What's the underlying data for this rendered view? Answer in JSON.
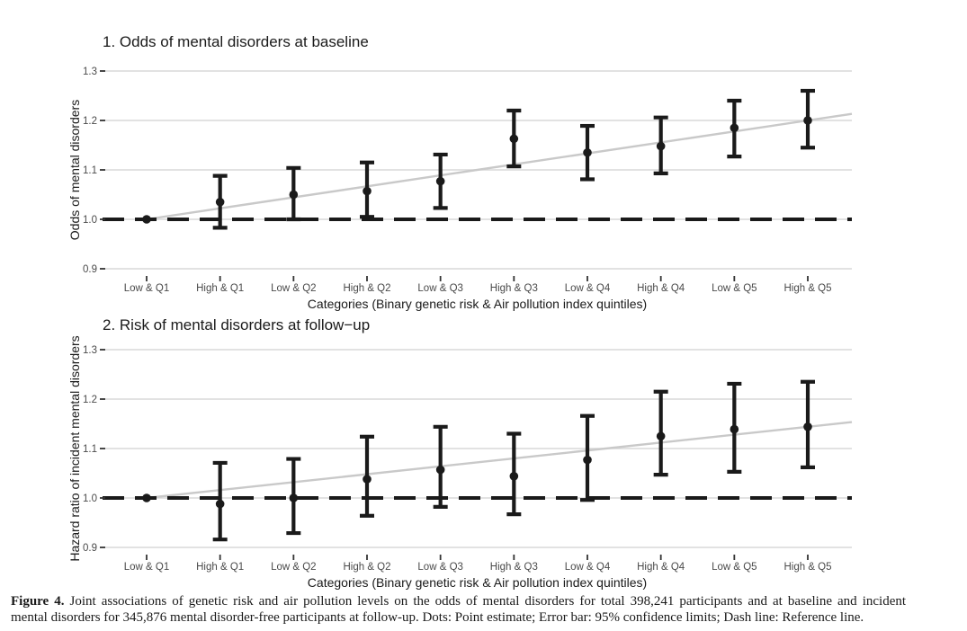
{
  "colors": {
    "ink": "#1a1a1a",
    "axis_text": "#4a4a4a",
    "tick_mark": "#333333",
    "gridline": "#d9d9d9",
    "trend_line": "#c9c9c9",
    "reference_line": "#1a1a1a",
    "background": "#ffffff"
  },
  "caption": {
    "label": "Figure 4.",
    "line1_rest": "Joint associations of genetic risk and air pollution levels on the odds of mental disorders for total 398,241 participants and at baseline and incident",
    "line2": "mental disorders for 345,876 mental disorder-free participants at follow-up. Dots: Point estimate; Error bar: 95% confidence limits; Dash line: Reference line."
  },
  "chart_data": [
    {
      "type": "scatter",
      "subtype": "point-estimates-with-95ci-error-bars",
      "title": "1. Odds of mental disorders at baseline",
      "xlabel": "Categories (Binary genetic risk & Air pollution index quintiles)",
      "ylabel": "Odds of mental disorders",
      "categories": [
        "Low & Q1",
        "High & Q1",
        "Low & Q2",
        "High & Q2",
        "Low & Q3",
        "High & Q3",
        "Low & Q4",
        "High & Q4",
        "Low & Q5",
        "High & Q5"
      ],
      "yticks": [
        0.9,
        1.0,
        1.1,
        1.2,
        1.3
      ],
      "ylim": [
        0.88,
        1.33
      ],
      "grid": "horizontal-only",
      "legend": "none",
      "reference_line": 1.0,
      "trend_line": "light gray straight fit from first to last point",
      "series": [
        {
          "name": "Point estimate (odds ratio)",
          "estimates": [
            1.0,
            1.035,
            1.05,
            1.057,
            1.077,
            1.163,
            1.135,
            1.148,
            1.185,
            1.2
          ],
          "ci_low": [
            1.0,
            0.983,
            1.0,
            1.005,
            1.023,
            1.107,
            1.081,
            1.093,
            1.127,
            1.145
          ],
          "ci_high": [
            1.0,
            1.088,
            1.104,
            1.115,
            1.131,
            1.22,
            1.189,
            1.206,
            1.24,
            1.26
          ]
        }
      ]
    },
    {
      "type": "scatter",
      "subtype": "point-estimates-with-95ci-error-bars",
      "title": "2. Risk of mental disorders at follow−up",
      "xlabel": "Categories (Binary genetic risk & Air pollution index quintiles)",
      "ylabel": "Hazard ratio of incident mental disorders",
      "categories": [
        "Low & Q1",
        "High & Q1",
        "Low & Q2",
        "High & Q2",
        "Low & Q3",
        "High & Q3",
        "Low & Q4",
        "High & Q4",
        "Low & Q5",
        "High & Q5"
      ],
      "yticks": [
        0.9,
        1.0,
        1.1,
        1.2,
        1.3
      ],
      "ylim": [
        0.88,
        1.33
      ],
      "grid": "horizontal-only",
      "legend": "none",
      "reference_line": 1.0,
      "trend_line": "light gray straight fit from first to last point",
      "series": [
        {
          "name": "Point estimate (hazard ratio)",
          "estimates": [
            1.0,
            0.988,
            1.0,
            1.038,
            1.057,
            1.044,
            1.077,
            1.125,
            1.139,
            1.144
          ],
          "ci_low": [
            1.0,
            0.916,
            0.929,
            0.964,
            0.982,
            0.967,
            0.996,
            1.047,
            1.053,
            1.062
          ],
          "ci_high": [
            1.0,
            1.071,
            1.079,
            1.124,
            1.144,
            1.13,
            1.166,
            1.215,
            1.231,
            1.235
          ]
        }
      ]
    }
  ]
}
